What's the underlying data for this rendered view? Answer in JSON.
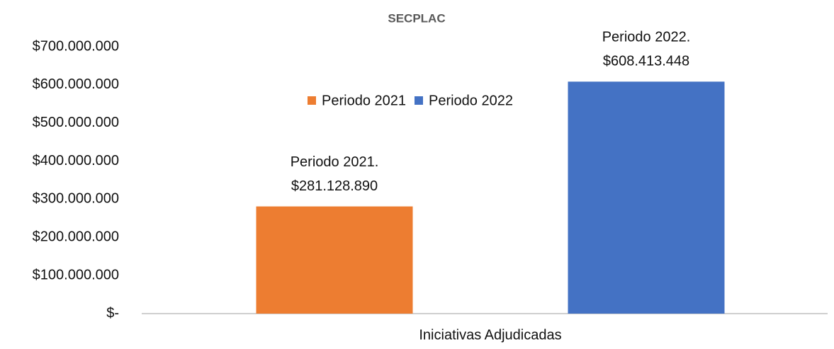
{
  "chart_data": {
    "type": "bar",
    "title": "SECPLAC",
    "categories": [
      "Iniciativas Adjudicadas"
    ],
    "series": [
      {
        "name": "Periodo 2021",
        "color": "#ED7D31",
        "values": [
          281128890
        ],
        "value_labels": [
          [
            "Periodo 2021.",
            "$281.128.890"
          ]
        ]
      },
      {
        "name": "Periodo 2022",
        "color": "#4472C4",
        "values": [
          608413448
        ],
        "value_labels": [
          [
            "Periodo 2022.",
            "$608.413.448"
          ]
        ]
      }
    ],
    "ylim": [
      0,
      700000000
    ],
    "yticks": [
      {
        "value": 0,
        "label": "$-"
      },
      {
        "value": 100000000,
        "label": "$100.000.000"
      },
      {
        "value": 200000000,
        "label": "$200.000.000"
      },
      {
        "value": 300000000,
        "label": "$300.000.000"
      },
      {
        "value": 400000000,
        "label": "$400.000.000"
      },
      {
        "value": 500000000,
        "label": "$500.000.000"
      },
      {
        "value": 600000000,
        "label": "$600.000.000"
      },
      {
        "value": 700000000,
        "label": "$700.000.000"
      }
    ],
    "grid": false,
    "legend": "top"
  }
}
